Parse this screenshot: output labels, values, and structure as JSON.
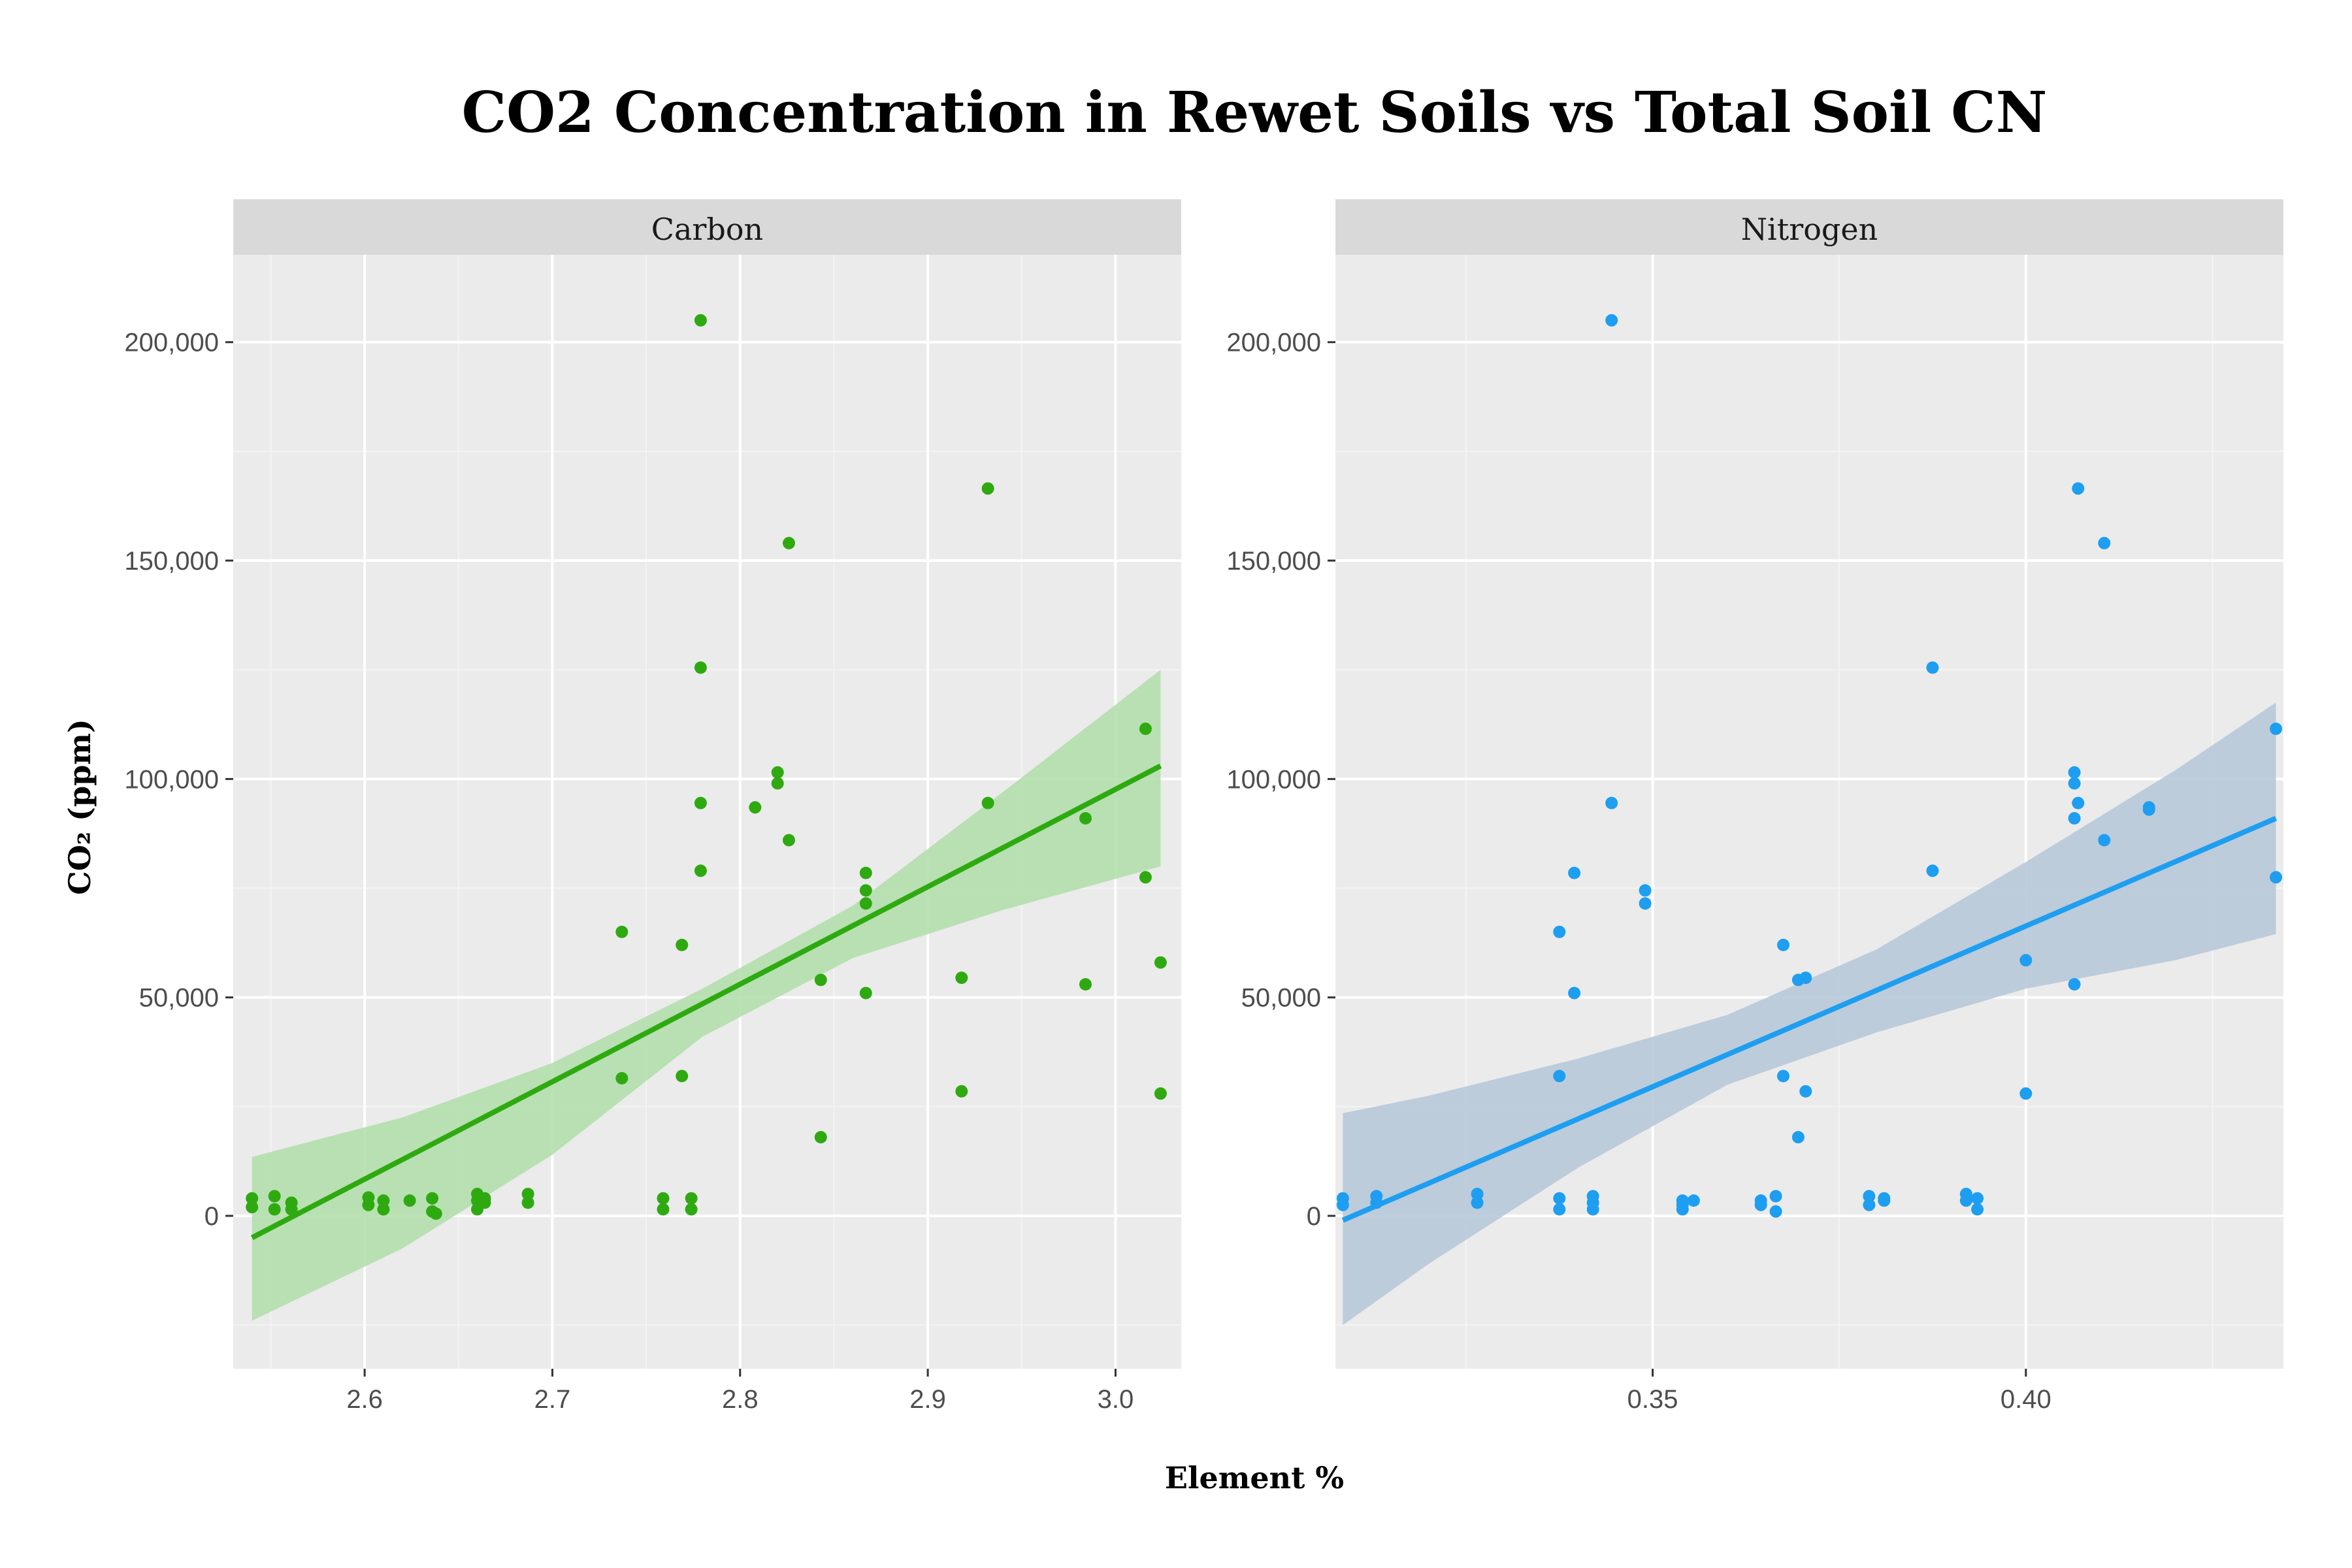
{
  "chart_data": {
    "type": "scatter",
    "title": "CO2 Concentration in Rewet Soils vs Total Soil CN",
    "xlabel": "Element %",
    "ylabel": "CO₂ (ppm)",
    "ylim": [
      -35000,
      220000
    ],
    "y_ticks": [
      0,
      50000,
      100000,
      150000,
      200000
    ],
    "y_tick_labels": [
      "0",
      "50,000",
      "100,000",
      "150,000",
      "200,000"
    ],
    "grid": true,
    "legend": "none",
    "panels": [
      {
        "name": "Carbon",
        "color": "#2eaa10",
        "band_color": "#b2dfac",
        "xlim": [
          2.53,
          3.035
        ],
        "x_ticks": [
          2.6,
          2.7,
          2.8,
          2.9,
          3.0
        ],
        "x_tick_labels": [
          "2.6",
          "2.7",
          "2.8",
          "2.9",
          "3.0"
        ],
        "points": [
          [
            2.54,
            4000
          ],
          [
            2.54,
            2000
          ],
          [
            2.552,
            4500
          ],
          [
            2.552,
            1500
          ],
          [
            2.561,
            3000
          ],
          [
            2.561,
            1500
          ],
          [
            2.602,
            4200
          ],
          [
            2.602,
            2500
          ],
          [
            2.61,
            3500
          ],
          [
            2.61,
            1500
          ],
          [
            2.624,
            3500
          ],
          [
            2.636,
            4000
          ],
          [
            2.636,
            1000
          ],
          [
            2.638,
            500
          ],
          [
            2.66,
            5000
          ],
          [
            2.66,
            3500
          ],
          [
            2.66,
            1500
          ],
          [
            2.664,
            4000
          ],
          [
            2.664,
            3000
          ],
          [
            2.687,
            5000
          ],
          [
            2.687,
            3000
          ],
          [
            2.737,
            65000
          ],
          [
            2.737,
            31500
          ],
          [
            2.759,
            4000
          ],
          [
            2.759,
            1500
          ],
          [
            2.769,
            62000
          ],
          [
            2.769,
            32000
          ],
          [
            2.774,
            4000
          ],
          [
            2.774,
            1500
          ],
          [
            2.779,
            205000
          ],
          [
            2.779,
            125500
          ],
          [
            2.779,
            94500
          ],
          [
            2.779,
            79000
          ],
          [
            2.808,
            93500
          ],
          [
            2.82,
            101500
          ],
          [
            2.82,
            99000
          ],
          [
            2.826,
            154000
          ],
          [
            2.826,
            86000
          ],
          [
            2.843,
            54000
          ],
          [
            2.843,
            18000
          ],
          [
            2.867,
            78500
          ],
          [
            2.867,
            74500
          ],
          [
            2.867,
            71500
          ],
          [
            2.867,
            51000
          ],
          [
            2.918,
            54500
          ],
          [
            2.918,
            28500
          ],
          [
            2.932,
            166500
          ],
          [
            2.932,
            94500
          ],
          [
            2.984,
            91000
          ],
          [
            2.984,
            53000
          ],
          [
            3.016,
            111500
          ],
          [
            3.016,
            77500
          ],
          [
            3.024,
            58000
          ],
          [
            3.024,
            28000
          ]
        ],
        "fit": {
          "x": [
            2.54,
            3.024
          ],
          "y": [
            -5000,
            103000
          ]
        },
        "ci_band": {
          "x": [
            2.54,
            2.62,
            2.7,
            2.78,
            2.86,
            2.94,
            3.024
          ],
          "upper": [
            13500,
            22500,
            35000,
            52000,
            71000,
            97000,
            125000
          ],
          "lower": [
            -24000,
            -7500,
            14000,
            41000,
            59000,
            70000,
            80000
          ]
        }
      },
      {
        "name": "Nitrogen",
        "color": "#1e9ef0",
        "band_color": "#b7c9d9",
        "xlim": [
          0.3075,
          0.4345
        ],
        "x_ticks": [
          0.35,
          0.4
        ],
        "x_tick_labels": [
          "0.35",
          "0.40"
        ],
        "points": [
          [
            0.3085,
            4000
          ],
          [
            0.3085,
            2500
          ],
          [
            0.313,
            4500
          ],
          [
            0.313,
            3000
          ],
          [
            0.3265,
            5000
          ],
          [
            0.3265,
            3000
          ],
          [
            0.3375,
            65000
          ],
          [
            0.3375,
            32000
          ],
          [
            0.3375,
            4000
          ],
          [
            0.3375,
            1500
          ],
          [
            0.3395,
            78500
          ],
          [
            0.3395,
            51000
          ],
          [
            0.342,
            4500
          ],
          [
            0.342,
            3000
          ],
          [
            0.342,
            1500
          ],
          [
            0.3445,
            205000
          ],
          [
            0.3445,
            94500
          ],
          [
            0.349,
            74500
          ],
          [
            0.349,
            71500
          ],
          [
            0.354,
            3500
          ],
          [
            0.354,
            2500
          ],
          [
            0.354,
            1500
          ],
          [
            0.3555,
            3500
          ],
          [
            0.3645,
            3500
          ],
          [
            0.3645,
            2500
          ],
          [
            0.3665,
            4500
          ],
          [
            0.3665,
            1000
          ],
          [
            0.3675,
            62000
          ],
          [
            0.3675,
            32000
          ],
          [
            0.3695,
            54000
          ],
          [
            0.3705,
            54500
          ],
          [
            0.3705,
            28500
          ],
          [
            0.3695,
            18000
          ],
          [
            0.379,
            4500
          ],
          [
            0.379,
            2500
          ],
          [
            0.381,
            4000
          ],
          [
            0.381,
            3500
          ],
          [
            0.3875,
            125500
          ],
          [
            0.3875,
            79000
          ],
          [
            0.392,
            5000
          ],
          [
            0.392,
            3500
          ],
          [
            0.3935,
            4000
          ],
          [
            0.3935,
            1500
          ],
          [
            0.4,
            58500
          ],
          [
            0.4,
            28000
          ],
          [
            0.4065,
            101500
          ],
          [
            0.4065,
            99000
          ],
          [
            0.4065,
            91000
          ],
          [
            0.4065,
            53000
          ],
          [
            0.407,
            166500
          ],
          [
            0.407,
            94500
          ],
          [
            0.4105,
            154000
          ],
          [
            0.4105,
            86000
          ],
          [
            0.4165,
            93500
          ],
          [
            0.4165,
            93000
          ],
          [
            0.4335,
            111500
          ],
          [
            0.4335,
            77500
          ]
        ],
        "fit": {
          "x": [
            0.3085,
            0.4335
          ],
          "y": [
            -1000,
            91000
          ]
        },
        "ci_band": {
          "x": [
            0.3085,
            0.32,
            0.34,
            0.36,
            0.38,
            0.4,
            0.42,
            0.4335
          ],
          "upper": [
            23500,
            27500,
            36000,
            46000,
            61000,
            81000,
            102000,
            117500
          ],
          "lower": [
            -25000,
            -11000,
            11000,
            30000,
            42000,
            52000,
            58500,
            64500
          ]
        }
      }
    ]
  }
}
